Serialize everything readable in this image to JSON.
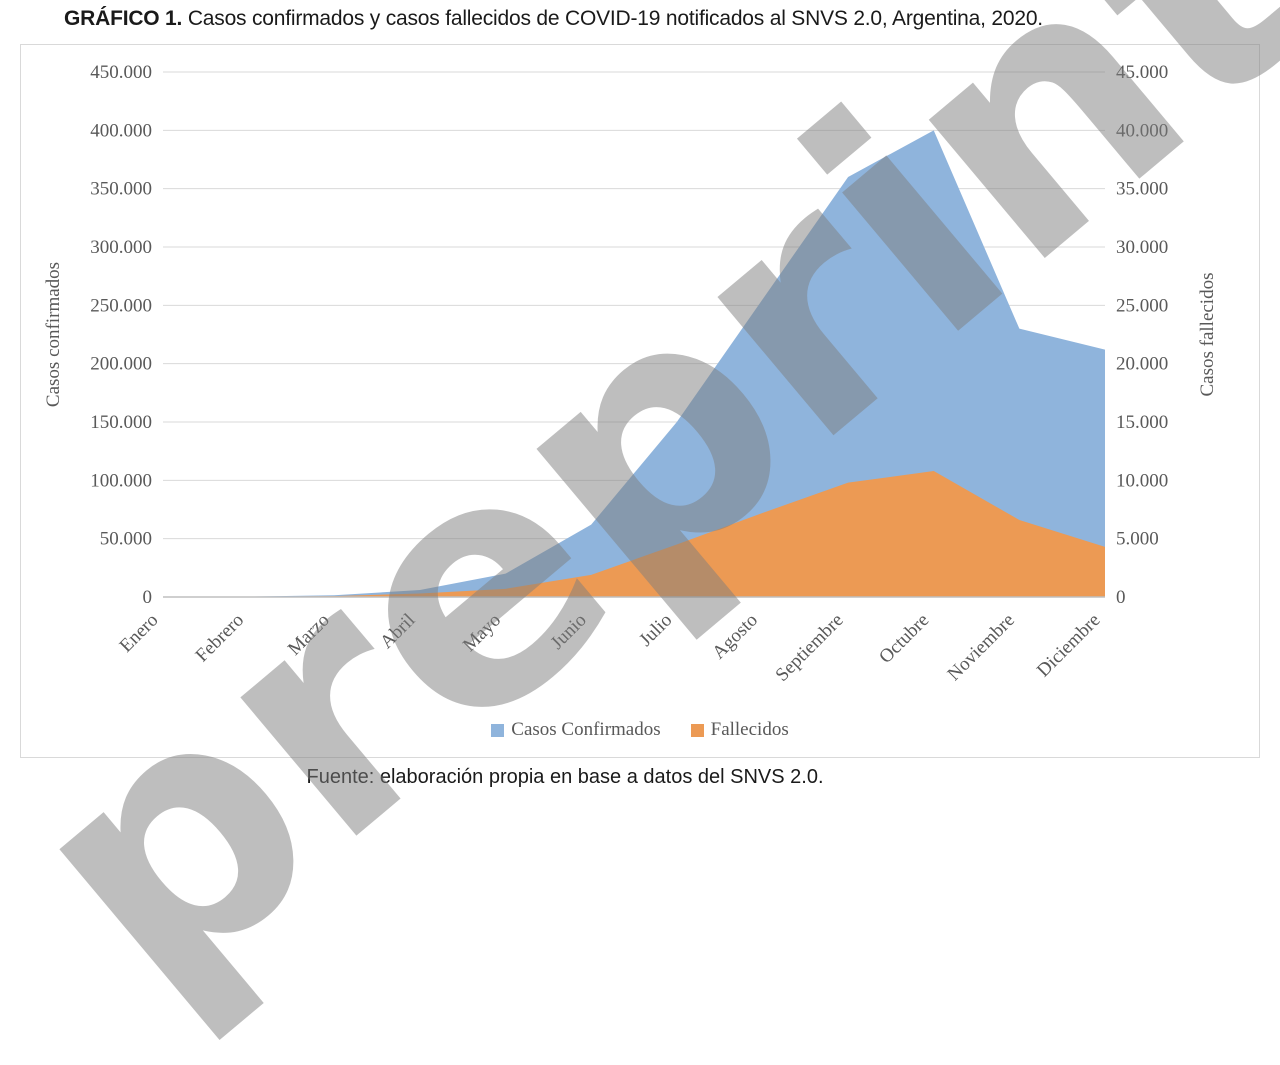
{
  "page": {
    "title_bold": "GRÁFICO 1.",
    "title_rest": " Casos confirmados y casos fallecidos de COVID-19 notificados al SNVS 2.0, Argentina, 2020.",
    "source": "Fuente: elaboración propia en base a datos del SNVS 2.0.",
    "watermark": "preprint"
  },
  "chart_data": {
    "type": "area",
    "title": "Casos confirmados y casos fallecidos de COVID-19 notificados al SNVS 2.0, Argentina, 2020",
    "grid": true,
    "legend_position": "bottom-center",
    "categories": [
      "Enero",
      "Febrero",
      "Marzo",
      "Abril",
      "Mayo",
      "Junio",
      "Julio",
      "Agosto",
      "Septiembre",
      "Octubre",
      "Noviembre",
      "Diciembre"
    ],
    "series": [
      {
        "name": "Casos Confirmados",
        "axis": "left",
        "color": "#8FB4DC",
        "values": [
          0,
          300,
          1500,
          6000,
          20000,
          62000,
          150000,
          255000,
          360000,
          400000,
          230000,
          212000
        ]
      },
      {
        "name": "Fallecidos",
        "axis": "right",
        "color": "#EC9A54",
        "values": [
          0,
          10,
          80,
          300,
          700,
          1900,
          4500,
          7200,
          9800,
          10800,
          6600,
          4300
        ]
      }
    ],
    "left_axis": {
      "label": "Casos confirmados",
      "min": 0,
      "max": 450000,
      "step": 50000,
      "tick_labels": [
        "0",
        "50.000",
        "100.000",
        "150.000",
        "200.000",
        "250.000",
        "300.000",
        "350.000",
        "400.000",
        "450.000"
      ]
    },
    "right_axis": {
      "label": "Casos fallecidos",
      "min": 0,
      "max": 45000,
      "step": 5000,
      "tick_labels": [
        "0",
        "5.000",
        "10.000",
        "15.000",
        "20.000",
        "25.000",
        "30.000",
        "35.000",
        "40.000",
        "45.000"
      ]
    },
    "legend": [
      {
        "label": "Casos Confirmados",
        "color": "#8FB4DC"
      },
      {
        "label": "Fallecidos",
        "color": "#EC9A54"
      }
    ],
    "gridline_color": "#D9D9D9",
    "baseline_color": "#BFBFBF"
  }
}
